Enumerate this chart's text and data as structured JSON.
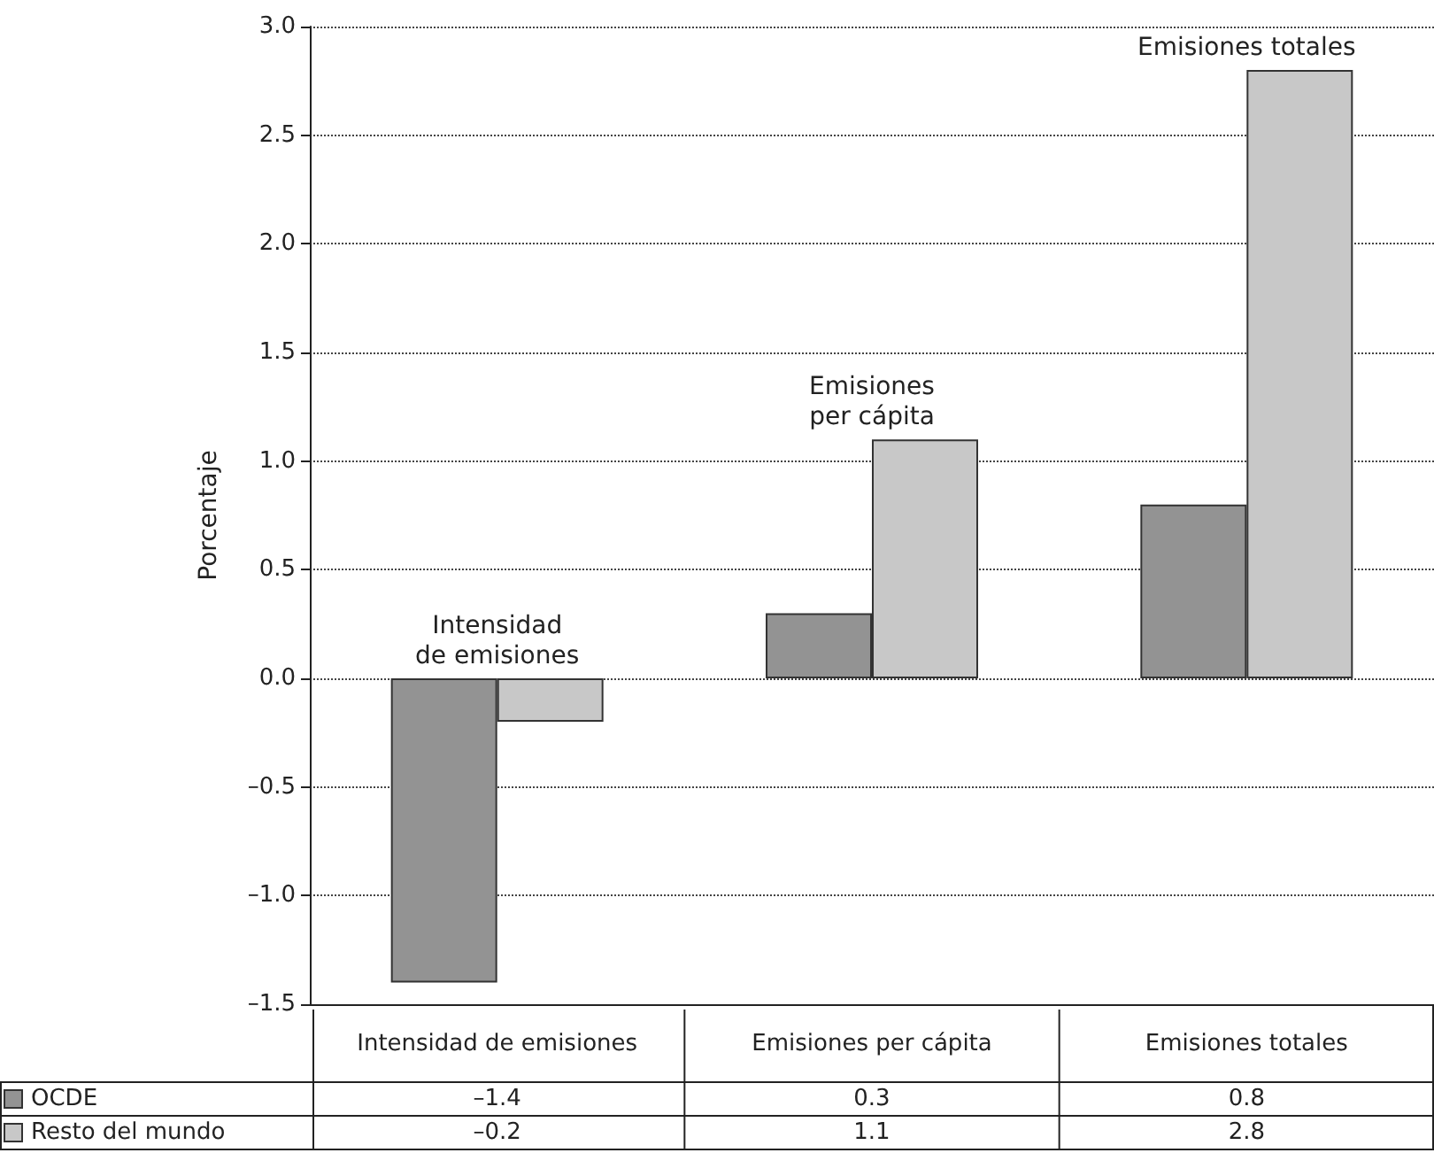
{
  "chart_data": {
    "type": "bar",
    "ylabel": "Porcentaje",
    "categories": [
      "Intensidad de emisiones",
      "Emisiones per cápita",
      "Emisiones totales"
    ],
    "series": [
      {
        "name": "OCDE",
        "color": "#939393",
        "values": [
          -1.4,
          0.3,
          0.8
        ],
        "value_labels": [
          "–1.4",
          "0.3",
          "0.8"
        ]
      },
      {
        "name": "Resto del mundo",
        "color": "#c8c8c8",
        "values": [
          -0.2,
          1.1,
          2.8
        ],
        "value_labels": [
          "–0.2",
          "1.1",
          "2.8"
        ]
      }
    ],
    "ylim": [
      -1.5,
      3.0
    ],
    "yticks": [
      {
        "value": -1.5,
        "label": "–1.5"
      },
      {
        "value": -1.0,
        "label": "–1.0"
      },
      {
        "value": -0.5,
        "label": "–0.5"
      },
      {
        "value": 0,
        "label": "0.0"
      },
      {
        "value": 0.5,
        "label": "0.5"
      },
      {
        "value": 1.0,
        "label": "1.0"
      },
      {
        "value": 1.5,
        "label": "1.5"
      },
      {
        "value": 2.0,
        "label": "2.0"
      },
      {
        "value": 2.5,
        "label": "2.5"
      },
      {
        "value": 3.0,
        "label": "3.0"
      }
    ],
    "grid": "y",
    "legend": "bottom left",
    "annotations": [
      "Intensidad\nde emisiones",
      "Emisiones\nper cápita",
      "Emisiones totales"
    ]
  }
}
